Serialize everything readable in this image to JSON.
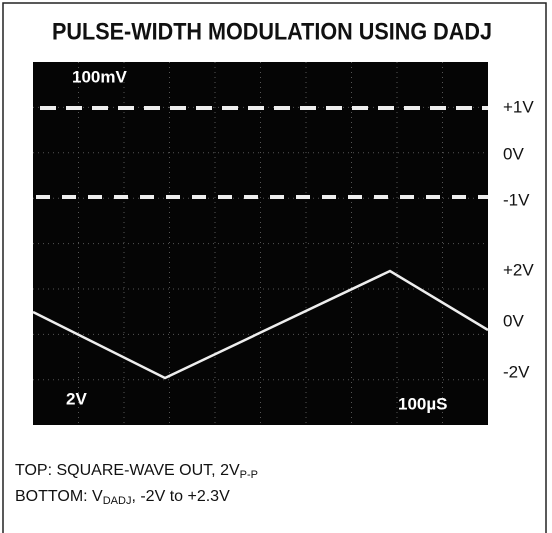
{
  "title": "PULSE-WIDTH MODULATION USING DADJ",
  "screen": {
    "scale_top": "100mV",
    "scale_bottom": "2V",
    "timebase": "100µS"
  },
  "right_labels": [
    "+1V",
    "0V",
    "-1V",
    "+2V",
    "0V",
    "-2V"
  ],
  "caption": {
    "top": {
      "text": "TOP: SQUARE-WAVE OUT, 2V",
      "subscript": "P-P"
    },
    "bottom": {
      "text": "BOTTOM: V",
      "subscript": "DADJ",
      "suffix": ", -2V to +2.3V"
    }
  }
}
